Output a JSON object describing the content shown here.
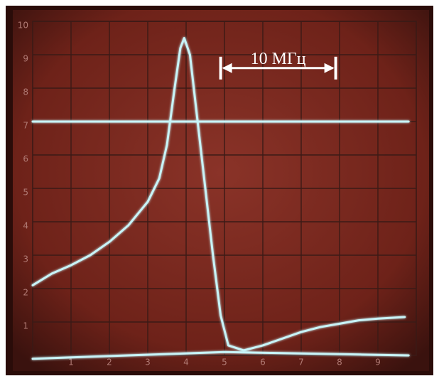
{
  "chart_data": {
    "type": "line",
    "annotation": {
      "text": "10 МГц",
      "x": [
        4.9,
        7.9
      ],
      "y": 8.6
    },
    "xlim": [
      0,
      10
    ],
    "ylim": [
      0,
      10
    ],
    "xticks": [
      1,
      2,
      3,
      4,
      5,
      6,
      7,
      8,
      9
    ],
    "yticks": [
      1,
      2,
      3,
      4,
      5,
      6,
      7,
      8,
      9,
      10
    ],
    "grid": true,
    "color": "#c8f4f8",
    "series": [
      {
        "x": [
          0,
          0.5,
          1,
          1.5,
          2,
          2.5,
          3,
          3.3,
          3.5,
          3.7,
          3.85,
          3.95,
          4.1,
          4.3,
          4.5,
          4.7,
          4.9,
          5.1,
          5.5,
          6,
          6.5,
          7,
          7.5,
          8,
          8.5,
          9,
          9.7
        ],
        "values": [
          2.1,
          2.45,
          2.7,
          3.0,
          3.4,
          3.9,
          4.6,
          5.3,
          6.3,
          8.0,
          9.2,
          9.5,
          9.0,
          7.0,
          5.0,
          3.0,
          1.2,
          0.3,
          0.15,
          0.3,
          0.5,
          0.7,
          0.85,
          0.95,
          1.05,
          1.1,
          1.15
        ]
      },
      {
        "x": [
          0,
          9.8
        ],
        "values": [
          7.0,
          7.0
        ]
      },
      {
        "x": [
          0,
          5,
          9.8
        ],
        "values": [
          -0.1,
          0.1,
          0.0
        ]
      }
    ]
  }
}
